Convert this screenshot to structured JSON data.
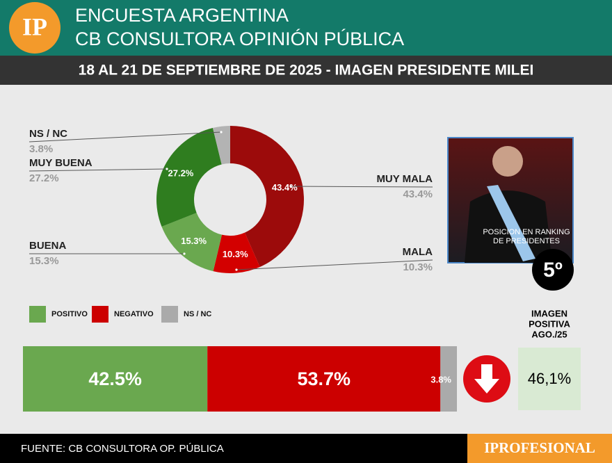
{
  "header": {
    "logo": "IP",
    "title_lines": [
      "ENCUESTA ARGENTINA",
      "CB CONSULTORA OPINIÓN PÚBLICA"
    ],
    "subtitle": "18 AL 21 DE SEPTIEMBRE DE 2025 - IMAGEN PRESIDENTE MILEI"
  },
  "chart_data": [
    {
      "type": "donut",
      "categories": [
        "MUY MALA",
        "MALA",
        "BUENA",
        "MUY BUENA",
        "NS / NC"
      ],
      "values": [
        43.4,
        10.3,
        15.3,
        27.2,
        3.8
      ],
      "value_labels": [
        "43.4%",
        "10.3%",
        "15.3%",
        "27.2%",
        "3.8%"
      ],
      "colors": [
        "#9c0b0b",
        "#d30000",
        "#6aa84f",
        "#2f7d1f",
        "#b3b3b3"
      ]
    },
    {
      "type": "bar",
      "orientation": "horizontal",
      "stacked": true,
      "series": [
        {
          "name": "POSITIVO",
          "color": "#6aa84f",
          "values": [
            42.5
          ],
          "value_labels": [
            "42.5%"
          ]
        },
        {
          "name": "NEGATIVO",
          "color": "#cc0000",
          "values": [
            53.7
          ],
          "value_labels": [
            "53.7%"
          ]
        },
        {
          "name": "NS / NC",
          "color": "#aaaaaa",
          "values": [
            3.8
          ],
          "value_labels": [
            "3.8%"
          ]
        }
      ],
      "xlim": [
        0,
        100
      ]
    }
  ],
  "comparison": {
    "label_lines": [
      "IMAGEN",
      "POSITIVA",
      "AGO./25"
    ],
    "value": "46,1%"
  },
  "photo": {
    "caption_lines": [
      "POSICION EN RANKING",
      "DE PRESIDENTES"
    ],
    "rank": "5º"
  },
  "footer": {
    "source": "FUENTE: CB CONSULTORA OP. PÚBLICA",
    "brand": "IPROFESIONAL"
  }
}
